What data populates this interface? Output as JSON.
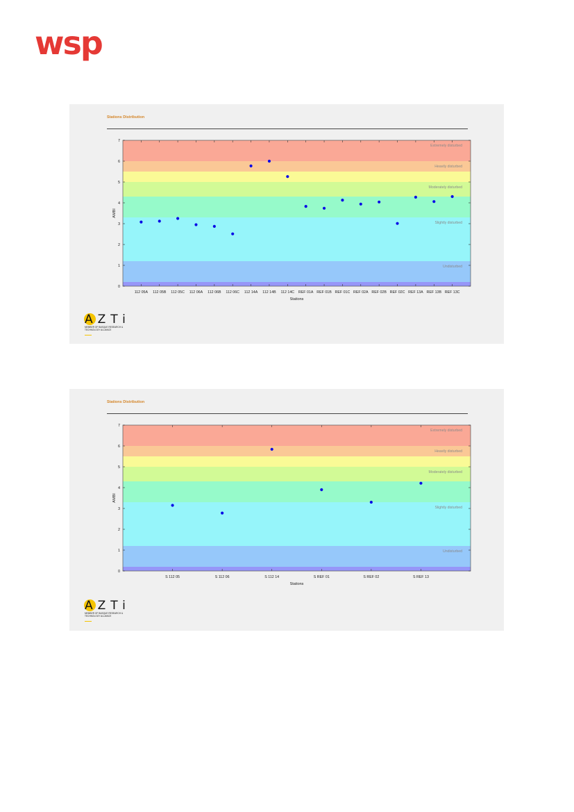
{
  "header": {
    "logo_text": "wsp"
  },
  "colors": {
    "brand_red": "#e53935",
    "title_orange": "#d4862a",
    "point": "#0a0ae6",
    "bands": [
      "#9696f8",
      "#96c8fa",
      "#96f5fa",
      "#96faca",
      "#d2fa96",
      "#fafa96",
      "#fac896",
      "#faa896"
    ]
  },
  "azti": {
    "letters": "AZTi",
    "member_text": "Member of Basque Research & Technology Alliance"
  },
  "chart_data": [
    {
      "type": "scatter",
      "title": "Stations Distribution",
      "xlabel": "Stations",
      "ylabel": "AMBI",
      "ylim": [
        0,
        7
      ],
      "yticks": [
        "0",
        "1",
        "2",
        "3",
        "4",
        "5",
        "6",
        "7"
      ],
      "bands": [
        {
          "from": 0,
          "to": 0.2,
          "label": ""
        },
        {
          "from": 0.2,
          "to": 1.2,
          "label": "Undisturbed"
        },
        {
          "from": 1.2,
          "to": 3.3,
          "label": "Slightly disturbed"
        },
        {
          "from": 3.3,
          "to": 4.3,
          "label": ""
        },
        {
          "from": 4.3,
          "to": 5.0,
          "label": "Moderately disturbed"
        },
        {
          "from": 5.0,
          "to": 5.5,
          "label": ""
        },
        {
          "from": 5.5,
          "to": 6.0,
          "label": "Heavily disturbed"
        },
        {
          "from": 6.0,
          "to": 7.0,
          "label": "Extremely disturbed"
        }
      ],
      "categories": [
        "112 05A",
        "112 05B",
        "112 05C",
        "112 06A",
        "112 06B",
        "112 06C",
        "112 14A",
        "112 14B",
        "112 14C",
        "REF 01A",
        "REF 01B",
        "REF 01C",
        "REF 02A",
        "REF 02B",
        "REF 02C",
        "REF 13A",
        "REF 13B",
        "REF 13C"
      ],
      "values": [
        3.08,
        3.12,
        3.25,
        2.95,
        2.87,
        2.51,
        5.77,
        6.0,
        5.26,
        3.83,
        3.74,
        4.13,
        3.94,
        4.04,
        3.01,
        4.27,
        4.06,
        4.3
      ],
      "grid": true
    },
    {
      "type": "scatter",
      "title": "Stations Distribution",
      "xlabel": "Stations",
      "ylabel": "AMBI",
      "ylim": [
        0,
        7
      ],
      "yticks": [
        "0",
        "1",
        "2",
        "3",
        "4",
        "5",
        "6",
        "7"
      ],
      "bands": [
        {
          "from": 0,
          "to": 0.2,
          "label": ""
        },
        {
          "from": 0.2,
          "to": 1.2,
          "label": "Undisturbed"
        },
        {
          "from": 1.2,
          "to": 3.3,
          "label": "Slightly disturbed"
        },
        {
          "from": 3.3,
          "to": 4.3,
          "label": ""
        },
        {
          "from": 4.3,
          "to": 5.0,
          "label": "Moderately disturbed"
        },
        {
          "from": 5.0,
          "to": 5.5,
          "label": ""
        },
        {
          "from": 5.5,
          "to": 6.0,
          "label": "Heavily disturbed"
        },
        {
          "from": 6.0,
          "to": 7.0,
          "label": "Extremely disturbed"
        }
      ],
      "categories": [
        "S 112 05",
        "S 112 06",
        "S 112 14",
        "S REF 01",
        "S REF 02",
        "S REF 13"
      ],
      "values": [
        3.15,
        2.78,
        5.84,
        3.9,
        3.3,
        4.21
      ],
      "grid": true
    }
  ]
}
